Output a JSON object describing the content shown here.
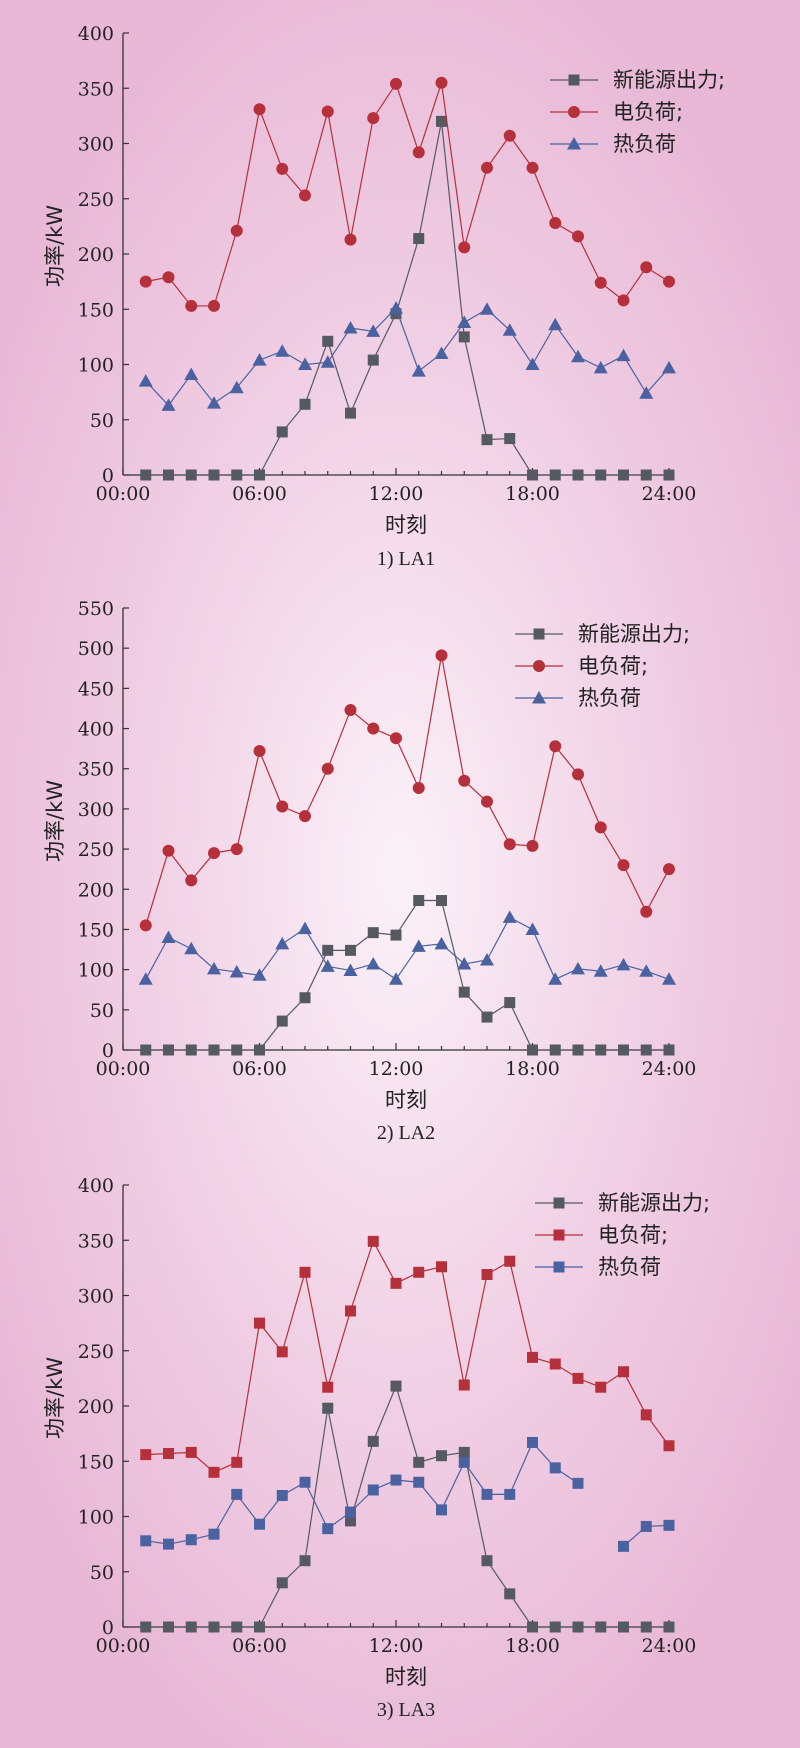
{
  "colors": {
    "renewable": "#555a60",
    "electric": "#b5303a",
    "heat": "#4a62a0",
    "axis": "#333333"
  },
  "chart_data": [
    {
      "type": "line",
      "caption": "1) LA1",
      "xlabel": "时刻",
      "ylabel": "功率/kW",
      "xlim": [
        0,
        24
      ],
      "ylim": [
        0,
        400
      ],
      "xticks": [
        0,
        6,
        12,
        18,
        24
      ],
      "xtick_labels": [
        "00:00",
        "06:00",
        "12:00",
        "18:00",
        "24:00"
      ],
      "yticks": [
        0,
        50,
        100,
        150,
        200,
        250,
        300,
        350,
        400
      ],
      "x": [
        1,
        2,
        3,
        4,
        5,
        6,
        7,
        8,
        9,
        10,
        11,
        12,
        13,
        14,
        15,
        16,
        17,
        18,
        19,
        20,
        21,
        22,
        23,
        24
      ],
      "series": [
        {
          "name": "新能源出力;",
          "color_key": "renewable",
          "marker": "square",
          "values": [
            0,
            0,
            0,
            0,
            0,
            0,
            39,
            64,
            121,
            56,
            104,
            146,
            214,
            320,
            125,
            32,
            33,
            0,
            0,
            0,
            0,
            0,
            0,
            0
          ]
        },
        {
          "name": "电负荷;",
          "color_key": "electric",
          "marker": "circle",
          "values": [
            175,
            179,
            153,
            153,
            221,
            331,
            277,
            253,
            329,
            213,
            323,
            354,
            292,
            355,
            206,
            278,
            307,
            278,
            228,
            216,
            174,
            158,
            188,
            175
          ]
        },
        {
          "name": "热负荷",
          "color_key": "heat",
          "marker": "triangle",
          "values": [
            85,
            63,
            91,
            65,
            79,
            104,
            112,
            100,
            102,
            133,
            130,
            151,
            94,
            110,
            138,
            150,
            131,
            100,
            136,
            107,
            97,
            108,
            74,
            97
          ]
        }
      ]
    },
    {
      "type": "line",
      "caption": "2) LA2",
      "xlabel": "时刻",
      "ylabel": "功率/kW",
      "xlim": [
        0,
        24
      ],
      "ylim": [
        0,
        550
      ],
      "xticks": [
        0,
        6,
        12,
        18,
        24
      ],
      "xtick_labels": [
        "00:00",
        "06:00",
        "12:00",
        "18:00",
        "24:00"
      ],
      "yticks": [
        0,
        50,
        100,
        150,
        200,
        250,
        300,
        350,
        400,
        450,
        500,
        550
      ],
      "x": [
        1,
        2,
        3,
        4,
        5,
        6,
        7,
        8,
        9,
        10,
        11,
        12,
        13,
        14,
        15,
        16,
        17,
        18,
        19,
        20,
        21,
        22,
        23,
        24
      ],
      "series": [
        {
          "name": "新能源出力;",
          "color_key": "renewable",
          "marker": "square",
          "values": [
            0,
            0,
            0,
            0,
            0,
            0,
            36,
            65,
            124,
            124,
            146,
            143,
            186,
            186,
            72,
            41,
            59,
            0,
            0,
            0,
            0,
            0,
            0,
            0
          ]
        },
        {
          "name": "电负荷;",
          "color_key": "electric",
          "marker": "circle",
          "values": [
            155,
            248,
            211,
            245,
            250,
            372,
            303,
            291,
            350,
            423,
            400,
            388,
            326,
            491,
            335,
            309,
            256,
            254,
            378,
            343,
            277,
            230,
            172,
            225
          ]
        },
        {
          "name": "热负荷",
          "color_key": "heat",
          "marker": "triangle",
          "values": [
            88,
            140,
            126,
            101,
            97,
            93,
            132,
            151,
            104,
            99,
            107,
            88,
            129,
            132,
            107,
            112,
            165,
            150,
            88,
            101,
            98,
            106,
            98,
            88
          ]
        }
      ]
    },
    {
      "type": "line",
      "caption": "3) LA3",
      "xlabel": "时刻",
      "ylabel": "功率/kW",
      "xlim": [
        0,
        24
      ],
      "ylim": [
        0,
        400
      ],
      "xticks": [
        0,
        6,
        12,
        18,
        24
      ],
      "xtick_labels": [
        "00:00",
        "06:00",
        "12:00",
        "18:00",
        "24:00"
      ],
      "yticks": [
        0,
        50,
        100,
        150,
        200,
        250,
        300,
        350,
        400
      ],
      "x": [
        1,
        2,
        3,
        4,
        5,
        6,
        7,
        8,
        9,
        10,
        11,
        12,
        13,
        14,
        15,
        16,
        17,
        18,
        19,
        20,
        21,
        22,
        23,
        24
      ],
      "series": [
        {
          "name": "新能源出力;",
          "color_key": "renewable",
          "marker": "square",
          "values": [
            0,
            0,
            0,
            0,
            0,
            0,
            40,
            60,
            198,
            96,
            168,
            218,
            149,
            155,
            158,
            60,
            30,
            0,
            0,
            0,
            0,
            0,
            0,
            0
          ]
        },
        {
          "name": "电负荷;",
          "color_key": "electric",
          "marker": "square",
          "values": [
            156,
            157,
            158,
            140,
            149,
            275,
            249,
            321,
            217,
            286,
            349,
            311,
            321,
            326,
            219,
            319,
            331,
            244,
            238,
            225,
            217,
            231,
            192,
            164
          ]
        },
        {
          "name": "热负荷",
          "color_key": "heat",
          "marker": "square",
          "values": [
            78,
            75,
            79,
            84,
            120,
            93,
            119,
            131,
            89,
            104,
            124,
            133,
            131,
            106,
            149,
            120,
            120,
            167,
            144,
            130,
            null,
            73,
            91,
            92
          ]
        }
      ]
    }
  ]
}
